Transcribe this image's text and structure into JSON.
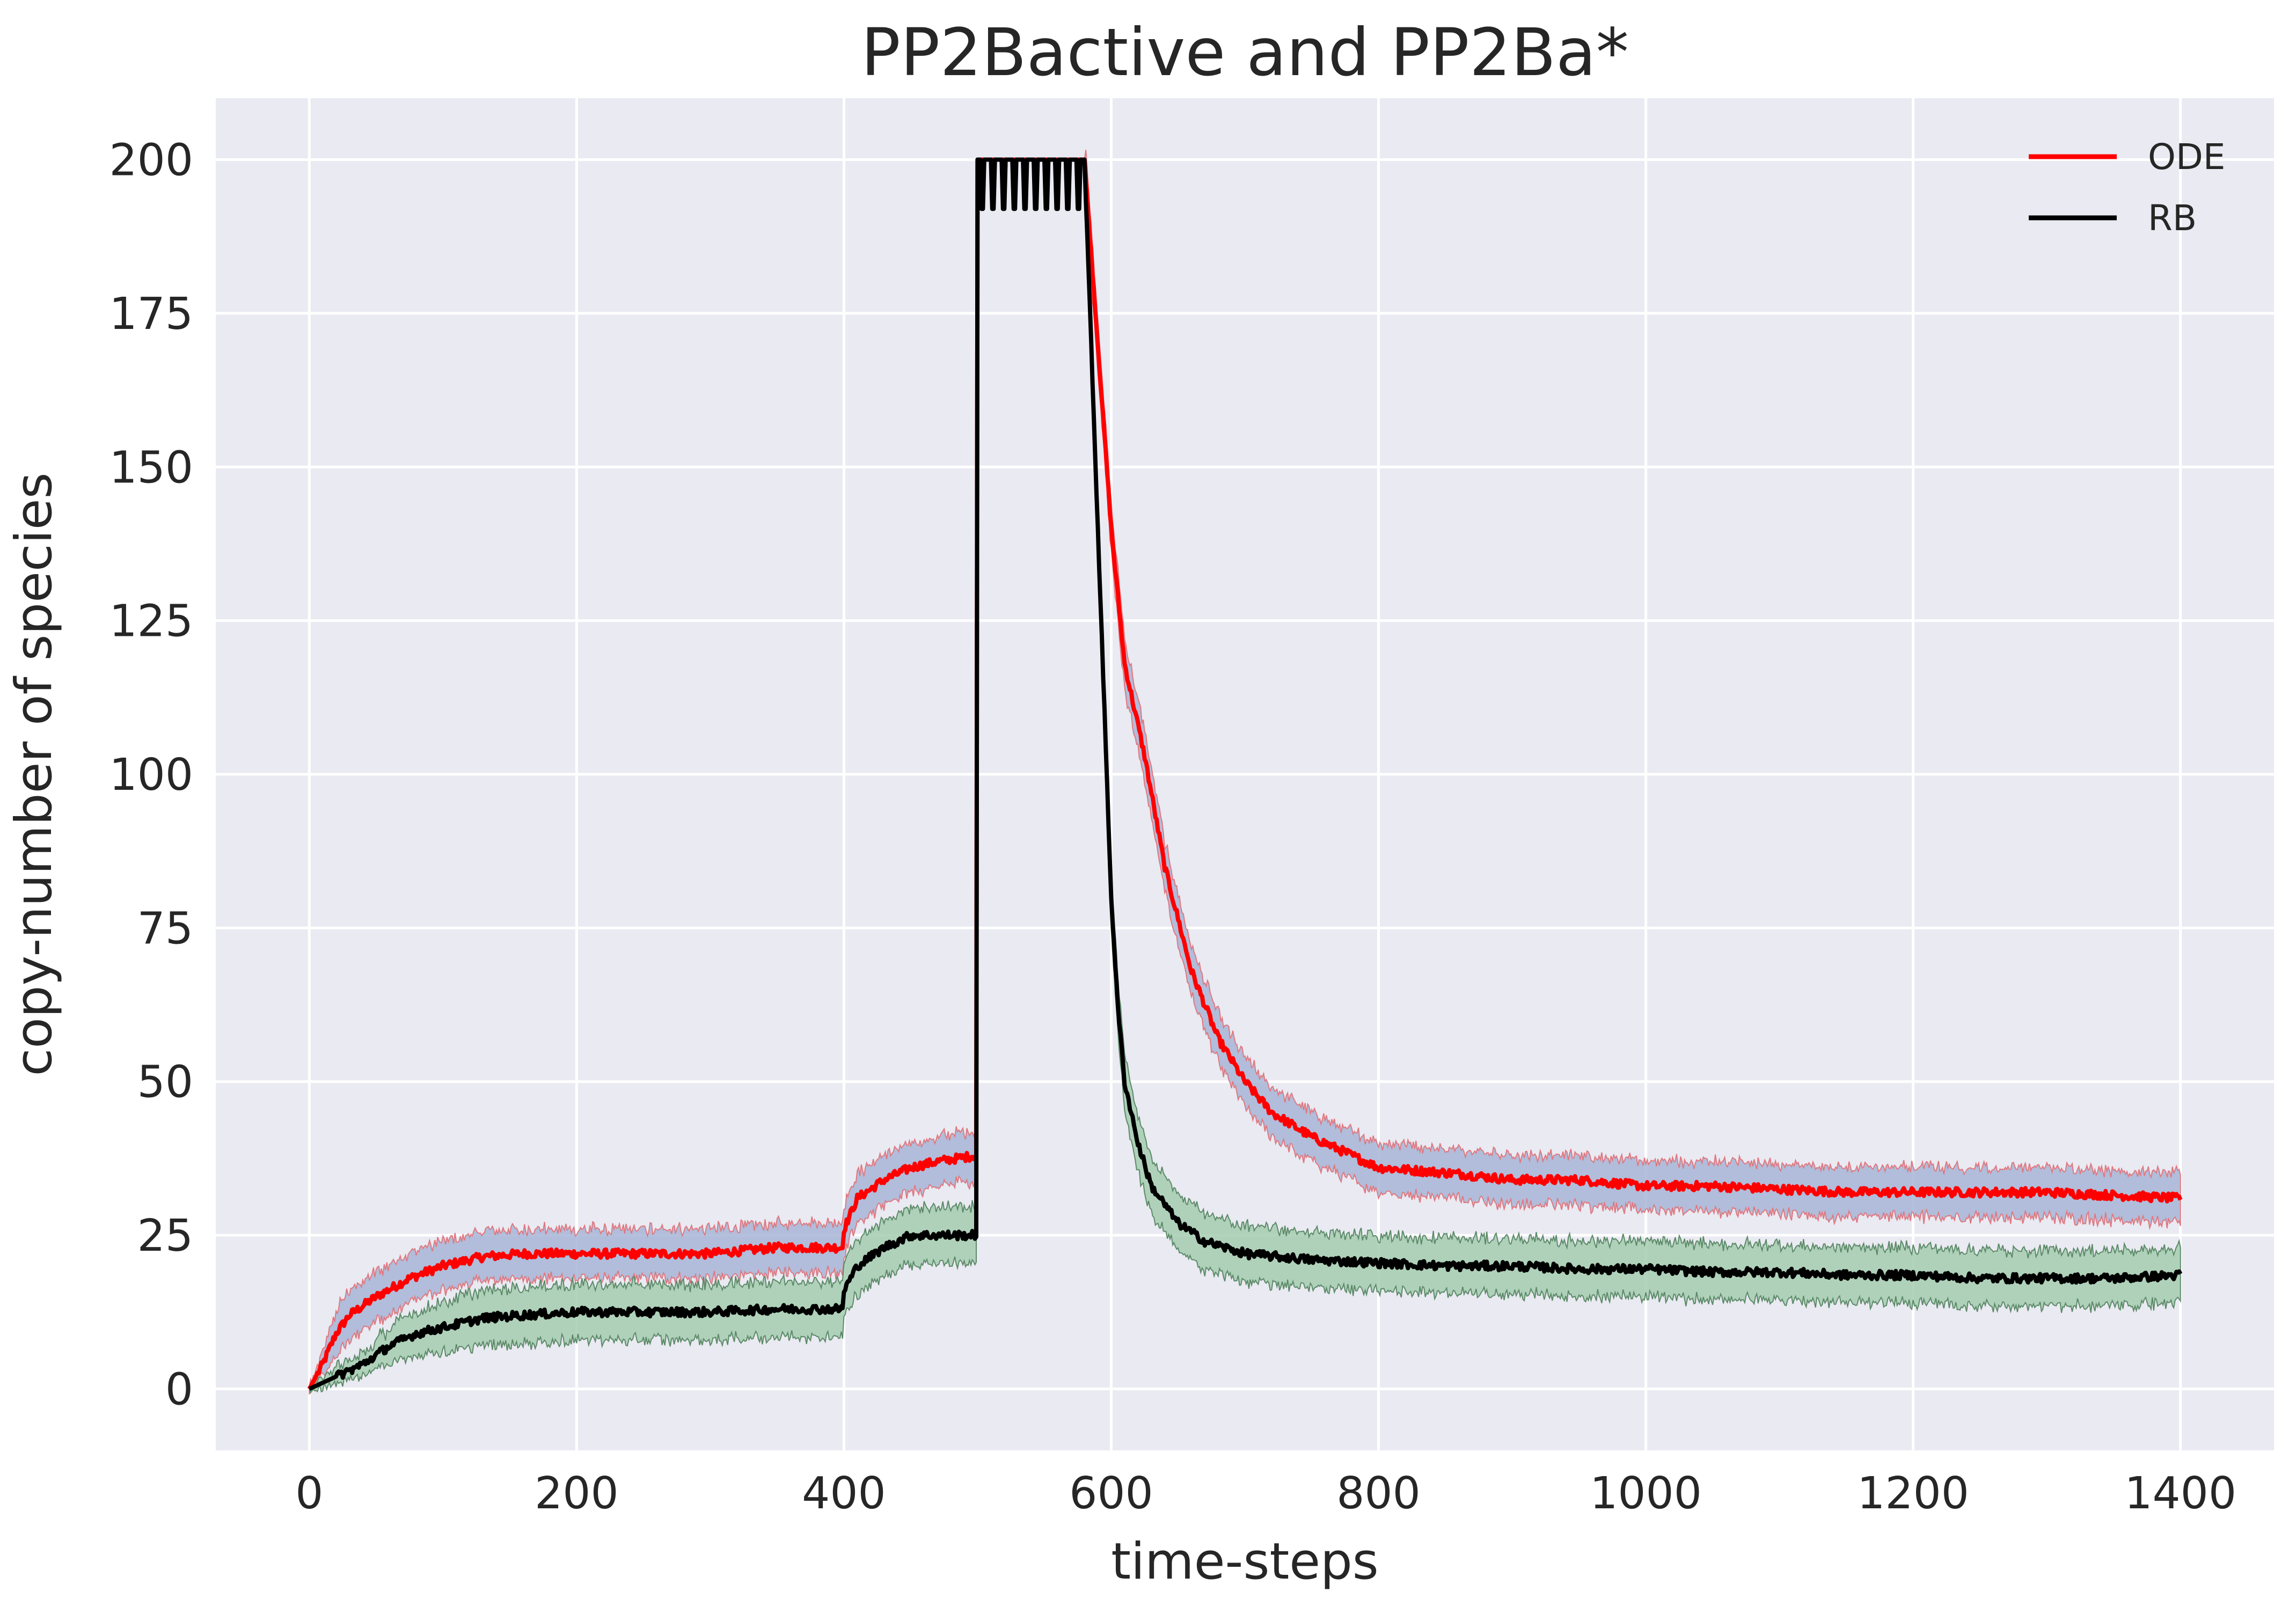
{
  "chart_data": {
    "type": "line",
    "title": "PP2Bactive and PP2Ba*",
    "xlabel": "time-steps",
    "ylabel": "copy-number of species",
    "xlim": [
      -70,
      1470
    ],
    "ylim": [
      -10,
      210
    ],
    "xticks": [
      0,
      200,
      400,
      600,
      800,
      1000,
      1200,
      1400
    ],
    "yticks": [
      0,
      25,
      50,
      75,
      100,
      125,
      150,
      175,
      200
    ],
    "grid": true,
    "background": "#EAEAF2",
    "legend_position": "top-right",
    "series": [
      {
        "name": "ODE",
        "color": "#FF0000",
        "band_color": "#A7B5D6",
        "band_edge_color": "#E07880",
        "band_halfwidth": 4,
        "x": [
          0,
          10,
          20,
          30,
          50,
          75,
          100,
          130,
          160,
          200,
          250,
          300,
          350,
          380,
          399,
          400,
          410,
          430,
          450,
          470,
          499,
          500,
          580,
          590,
          600,
          610,
          625,
          640,
          660,
          680,
          700,
          720,
          750,
          780,
          800,
          830,
          860,
          900,
          950,
          1000,
          1050,
          1100,
          1150,
          1200,
          1250,
          1300,
          1350,
          1400
        ],
        "y": [
          0,
          4,
          9,
          12,
          15,
          18,
          20,
          21.5,
          22,
          22,
          22,
          22,
          23,
          23,
          23,
          26,
          31,
          34,
          36,
          37,
          38,
          200,
          200,
          170,
          140,
          118,
          103,
          85,
          68,
          57,
          50,
          45,
          41,
          38,
          36,
          35.5,
          35,
          34,
          34,
          33,
          33,
          32.5,
          32,
          32,
          32,
          32,
          31.5,
          31
        ]
      },
      {
        "name": "RB",
        "color": "#000000",
        "band_color": "#A5CDB0",
        "band_edge_color": "#5C8A68",
        "band_halfwidth": 4.5,
        "x": [
          0,
          10,
          20,
          40,
          60,
          80,
          100,
          130,
          160,
          200,
          250,
          300,
          350,
          380,
          399,
          400,
          410,
          430,
          450,
          470,
          499,
          500,
          580,
          590,
          600,
          605,
          610,
          620,
          630,
          650,
          670,
          700,
          750,
          800,
          850,
          900,
          950,
          1000,
          1050,
          1100,
          1150,
          1200,
          1250,
          1300,
          1350,
          1400
        ],
        "y": [
          0,
          1,
          2,
          4,
          7,
          9,
          10,
          11.5,
          12,
          12.5,
          12.5,
          12.5,
          13,
          13,
          13,
          16,
          20,
          23,
          25,
          25,
          25,
          200,
          200,
          140,
          80,
          62,
          50,
          40,
          33,
          27,
          24,
          22,
          21,
          20.5,
          20,
          20,
          19.5,
          19.5,
          19,
          19,
          18.5,
          18.5,
          18,
          18,
          18,
          18.5
        ]
      }
    ],
    "oscillation_window": [
      500,
      580
    ]
  }
}
